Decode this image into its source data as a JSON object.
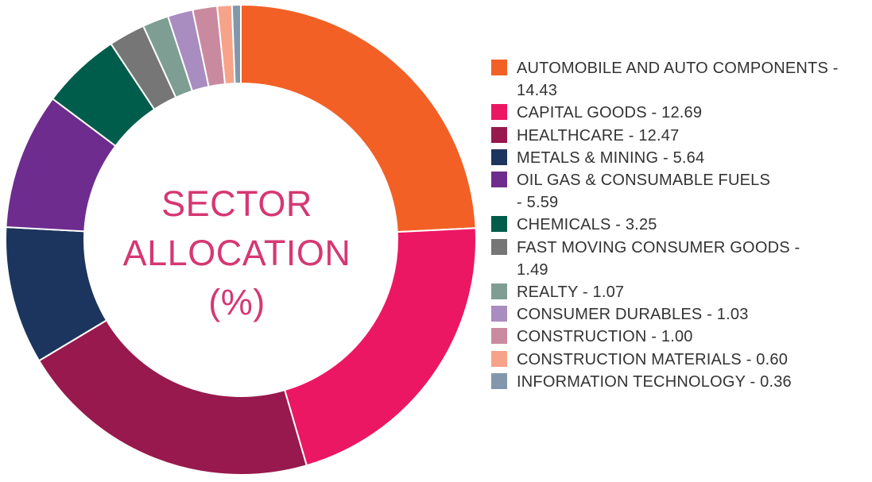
{
  "chart_data": {
    "type": "pie",
    "title": "SECTOR ALLOCATION (%)",
    "title_lines": [
      "SECTOR",
      "ALLOCATION",
      "(%)"
    ],
    "legend_position": "right",
    "categories": [
      "AUTOMOBILE AND AUTO COMPONENTS",
      "CAPITAL GOODS",
      "HEALTHCARE",
      "METALS & MINING",
      "OIL GAS & CONSUMABLE FUELS",
      "CHEMICALS",
      "FAST MOVING CONSUMER GOODS",
      "REALTY",
      "CONSUMER DURABLES",
      "CONSTRUCTION",
      "CONSTRUCTION MATERIALS",
      "INFORMATION TECHNOLOGY"
    ],
    "values": [
      14.43,
      12.69,
      12.47,
      5.64,
      5.59,
      3.25,
      1.49,
      1.07,
      1.03,
      1.0,
      0.6,
      0.36
    ],
    "legend_lines": [
      [
        "AUTOMOBILE AND AUTO COMPONENTS -",
        "14.43"
      ],
      [
        "CAPITAL GOODS - 12.69"
      ],
      [
        "HEALTHCARE - 12.47"
      ],
      [
        "METALS & MINING - 5.64"
      ],
      [
        "OIL GAS & CONSUMABLE FUELS",
        "- 5.59"
      ],
      [
        "CHEMICALS - 3.25"
      ],
      [
        "FAST MOVING CONSUMER GOODS -",
        "1.49"
      ],
      [
        "REALTY - 1.07"
      ],
      [
        "CONSUMER DURABLES - 1.03"
      ],
      [
        "CONSTRUCTION - 1.00"
      ],
      [
        "CONSTRUCTION MATERIALS - 0.60"
      ],
      [
        "INFORMATION TECHNOLOGY - 0.36"
      ]
    ],
    "colors": [
      "#f26026",
      "#ec1763",
      "#98194d",
      "#1c355e",
      "#6e2c8e",
      "#005c4b",
      "#767676",
      "#7e9e94",
      "#a98cc0",
      "#c98a9f",
      "#f6a389",
      "#8297ab"
    ],
    "title_color": "#d63773"
  }
}
